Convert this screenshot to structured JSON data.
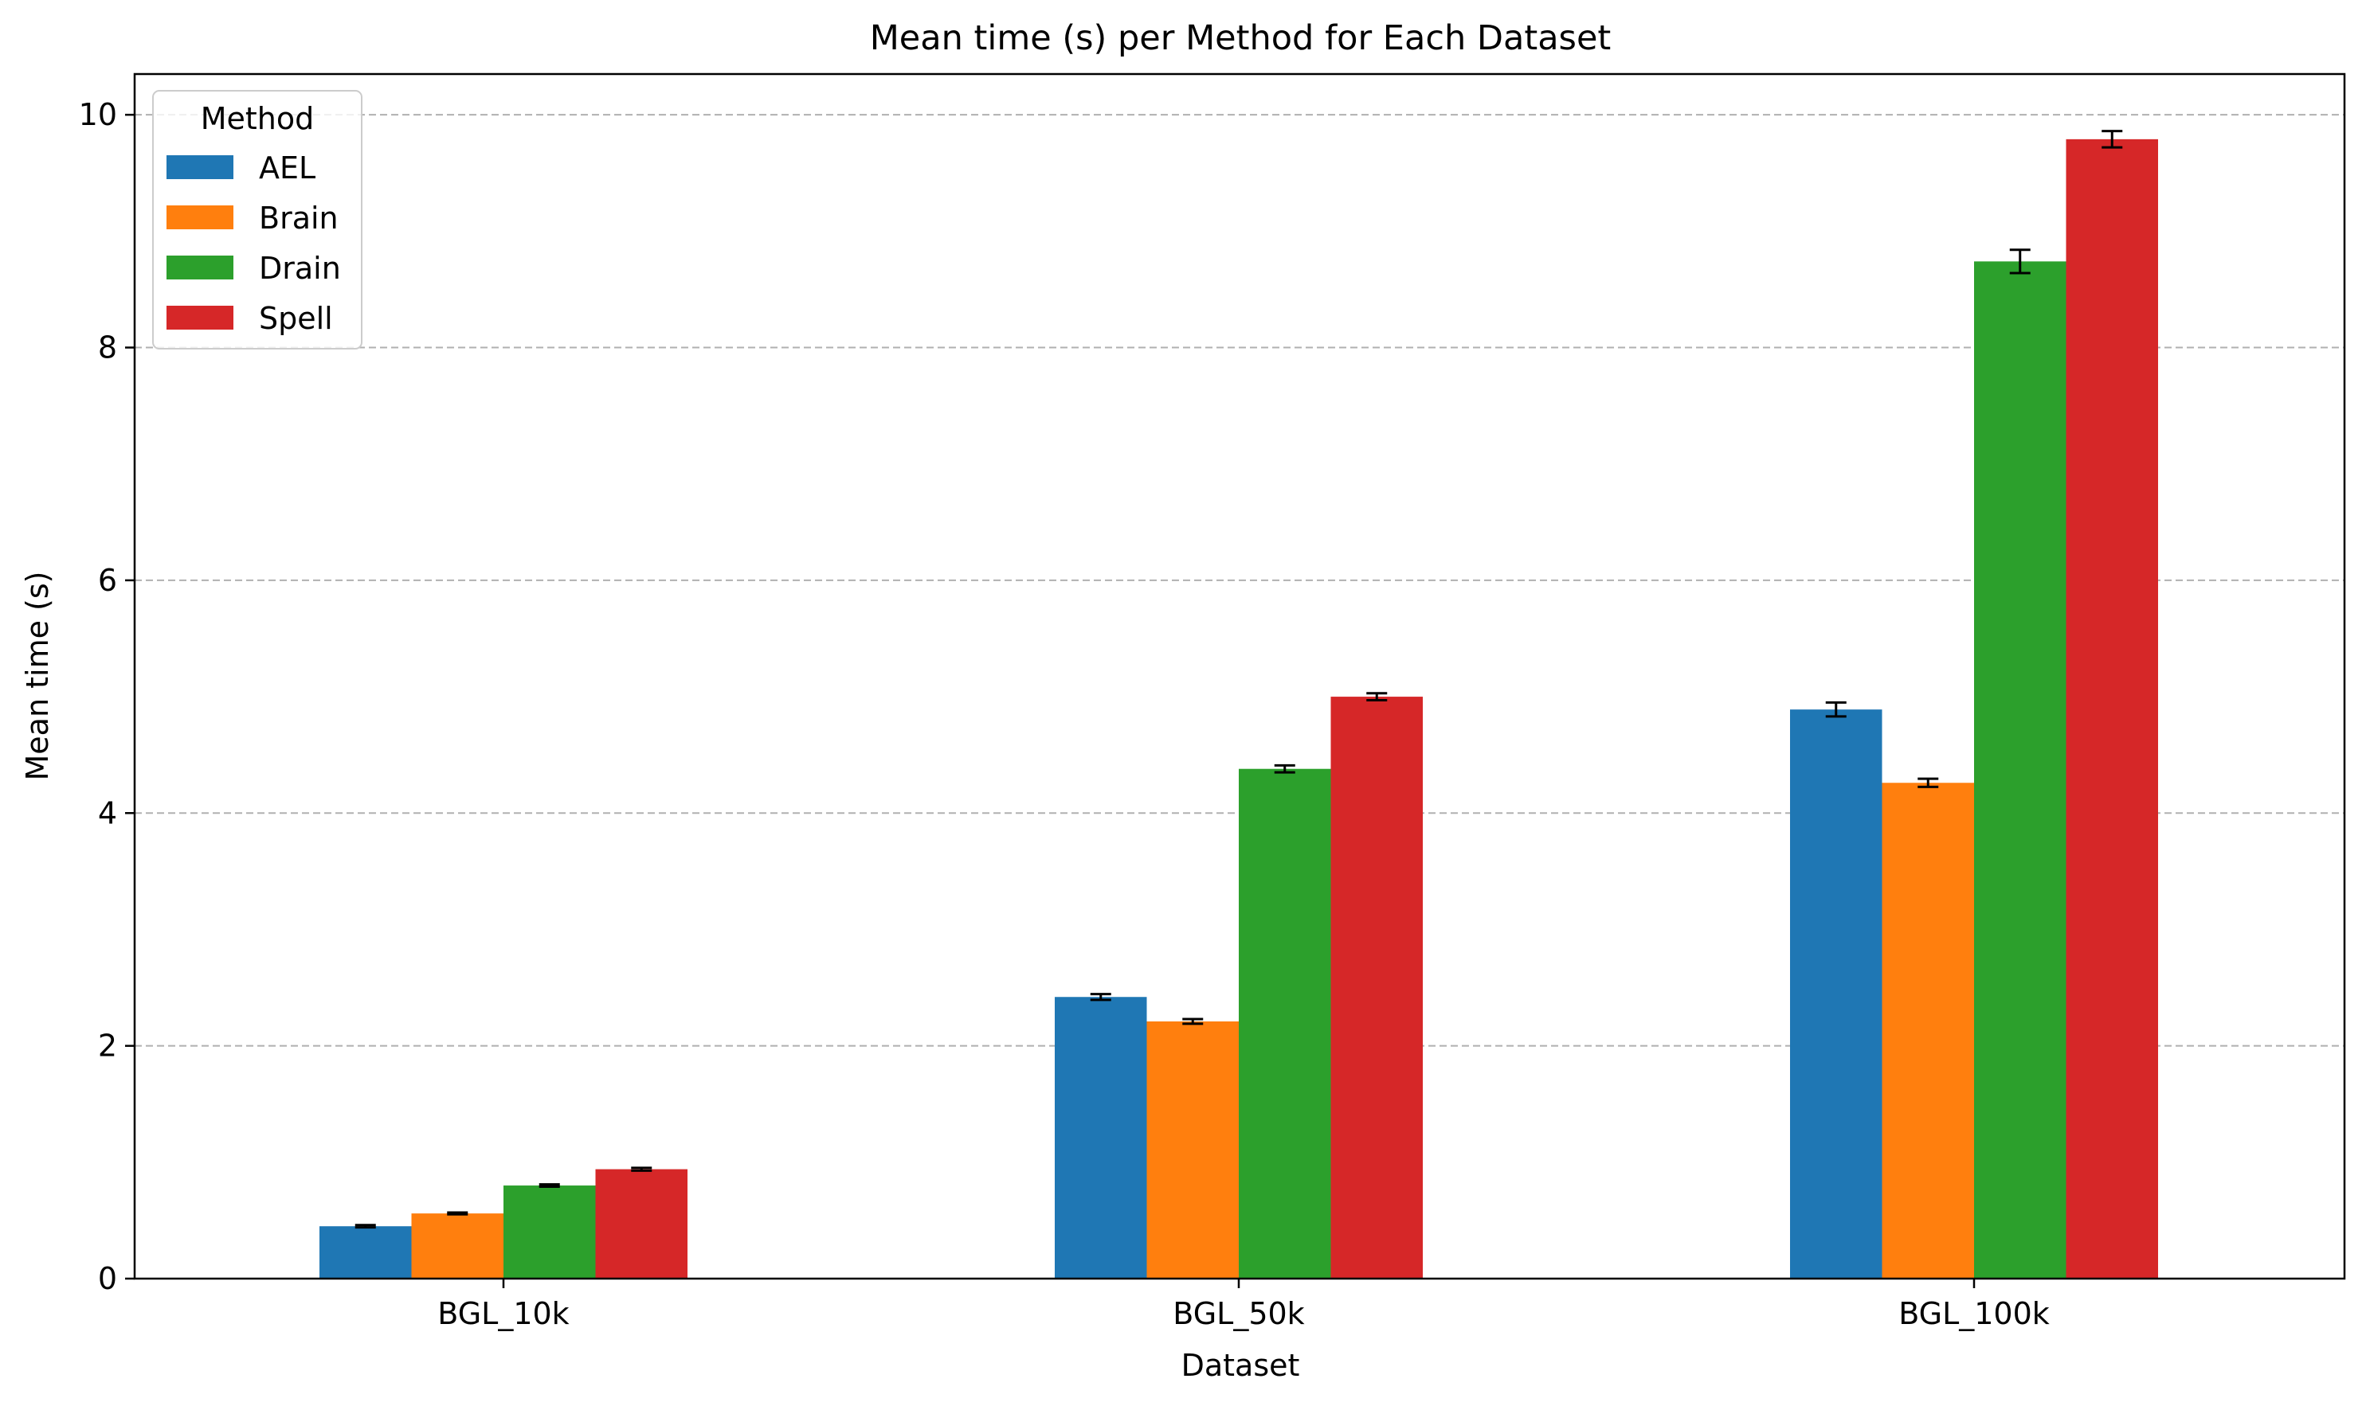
{
  "chart_data": {
    "type": "bar",
    "title": "Mean time (s) per Method for Each Dataset",
    "xlabel": "Dataset",
    "ylabel": "Mean time (s)",
    "categories": [
      "BGL_10k",
      "BGL_50k",
      "BGL_100k"
    ],
    "ylim": [
      0,
      10.35
    ],
    "yticks": [
      "0",
      "2",
      "4",
      "6",
      "8",
      "10"
    ],
    "grid": "y-dashed",
    "legend": {
      "title": "Method",
      "placement": "top-left"
    },
    "series": [
      {
        "name": "AEL",
        "color": "#1f77b4",
        "values": [
          0.45,
          2.42,
          4.89
        ],
        "errors": [
          0.01,
          0.025,
          0.06
        ]
      },
      {
        "name": "Brain",
        "color": "#ff7f0e",
        "values": [
          0.56,
          2.21,
          4.26
        ],
        "errors": [
          0.008,
          0.02,
          0.035
        ]
      },
      {
        "name": "Drain",
        "color": "#2ca02c",
        "values": [
          0.8,
          4.38,
          8.74
        ],
        "errors": [
          0.01,
          0.03,
          0.1
        ]
      },
      {
        "name": "Spell",
        "color": "#d62728",
        "values": [
          0.94,
          5.0,
          9.79
        ],
        "errors": [
          0.012,
          0.03,
          0.07
        ]
      }
    ]
  }
}
